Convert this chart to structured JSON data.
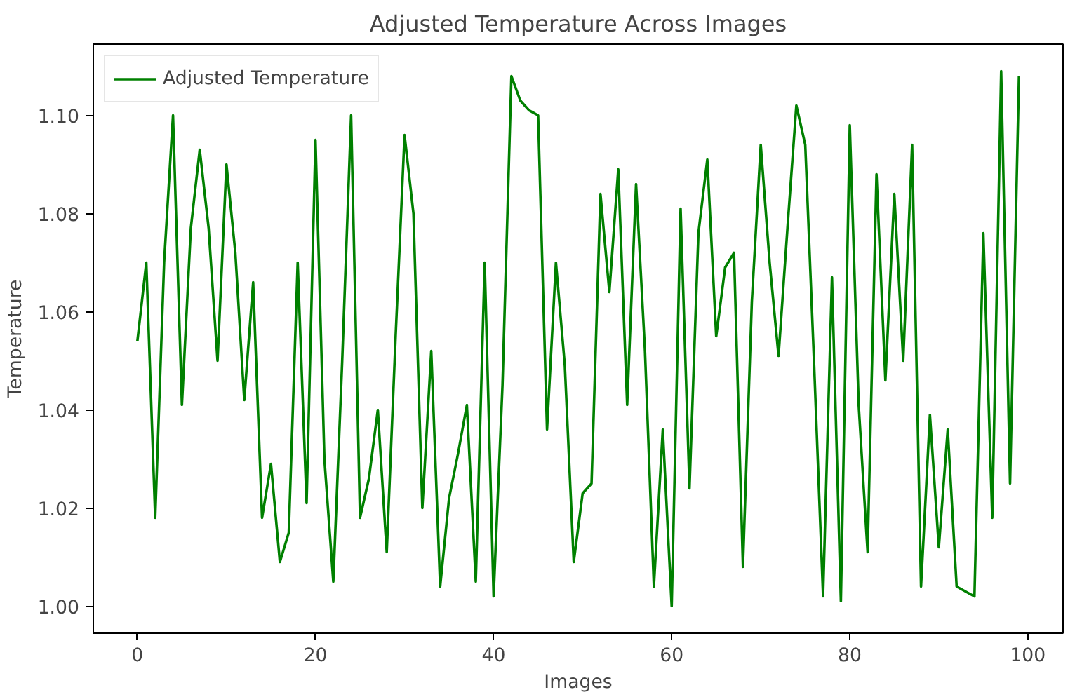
{
  "chart_data": {
    "type": "line",
    "title": "Adjusted Temperature Across Images",
    "xlabel": "Images",
    "ylabel": "Temperature",
    "x": [
      0,
      1,
      2,
      3,
      4,
      5,
      6,
      7,
      8,
      9,
      10,
      11,
      12,
      13,
      14,
      15,
      16,
      17,
      18,
      19,
      20,
      21,
      22,
      23,
      24,
      25,
      26,
      27,
      28,
      29,
      30,
      31,
      32,
      33,
      34,
      35,
      36,
      37,
      38,
      39,
      40,
      41,
      42,
      43,
      44,
      45,
      46,
      47,
      48,
      49,
      50,
      51,
      52,
      53,
      54,
      55,
      56,
      57,
      58,
      59,
      60,
      61,
      62,
      63,
      64,
      65,
      66,
      67,
      68,
      69,
      70,
      71,
      72,
      73,
      74,
      75,
      76,
      77,
      78,
      79,
      80,
      81,
      82,
      83,
      84,
      85,
      86,
      87,
      88,
      89,
      90,
      91,
      92,
      93,
      94,
      95,
      96,
      97,
      98,
      99
    ],
    "series": [
      {
        "name": "Adjusted Temperature",
        "color": "#008000",
        "values": [
          1.054,
          1.07,
          1.018,
          1.07,
          1.1,
          1.041,
          1.077,
          1.093,
          1.077,
          1.05,
          1.09,
          1.072,
          1.042,
          1.066,
          1.018,
          1.029,
          1.009,
          1.015,
          1.07,
          1.021,
          1.095,
          1.03,
          1.005,
          1.05,
          1.1,
          1.018,
          1.026,
          1.04,
          1.011,
          1.055,
          1.096,
          1.08,
          1.02,
          1.052,
          1.004,
          1.022,
          1.031,
          1.041,
          1.005,
          1.07,
          1.002,
          1.045,
          1.108,
          1.103,
          1.101,
          1.1,
          1.036,
          1.07,
          1.049,
          1.009,
          1.023,
          1.025,
          1.084,
          1.064,
          1.089,
          1.041,
          1.086,
          1.052,
          1.004,
          1.036,
          1.0,
          1.081,
          1.024,
          1.076,
          1.091,
          1.055,
          1.069,
          1.072,
          1.008,
          1.062,
          1.094,
          1.07,
          1.051,
          1.077,
          1.102,
          1.094,
          1.049,
          1.002,
          1.067,
          1.001,
          1.098,
          1.041,
          1.011,
          1.088,
          1.046,
          1.084,
          1.05,
          1.094,
          1.004,
          1.039,
          1.012,
          1.036,
          1.004,
          1.003,
          1.002,
          1.076,
          1.018,
          1.109,
          1.025,
          1.108
        ]
      }
    ],
    "xlim": [
      -4.95,
      103.95
    ],
    "ylim": [
      0.9945,
      1.1145
    ],
    "xticks": [
      0,
      20,
      40,
      60,
      80,
      100
    ],
    "yticks": [
      {
        "value": 1.0,
        "label": "1.00"
      },
      {
        "value": 1.02,
        "label": "1.02"
      },
      {
        "value": 1.04,
        "label": "1.04"
      },
      {
        "value": 1.06,
        "label": "1.06"
      },
      {
        "value": 1.08,
        "label": "1.08"
      },
      {
        "value": 1.1,
        "label": "1.10"
      }
    ],
    "legend": "top left",
    "grid": false,
    "marker": "none",
    "line_style": "solid"
  }
}
